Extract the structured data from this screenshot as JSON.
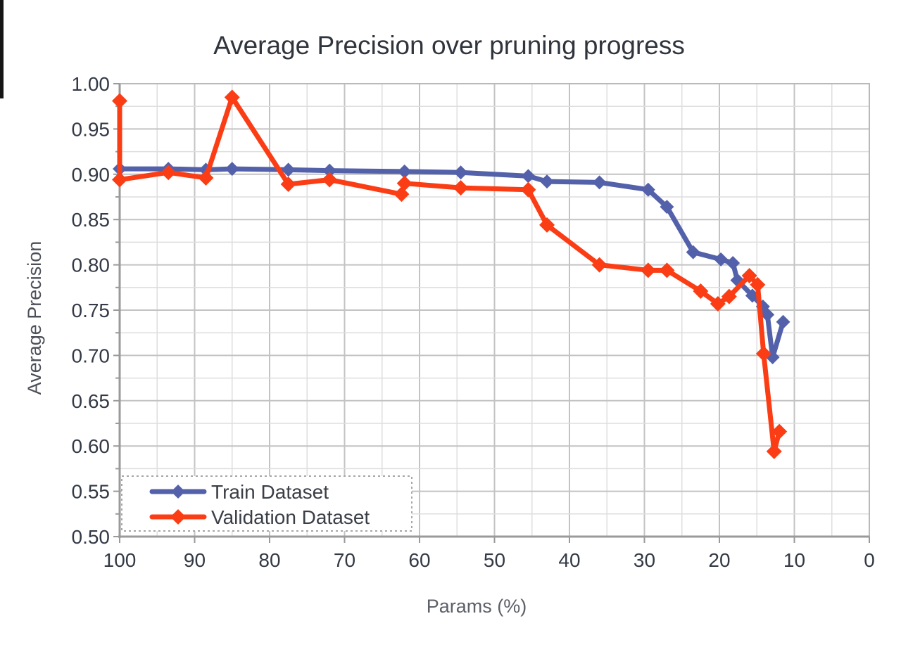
{
  "chart_data": {
    "type": "line",
    "title": "Average Precision over pruning progress",
    "xlabel": "Params (%)",
    "ylabel": "Average Precision",
    "x_axis": {
      "min": 0,
      "max": 100,
      "reversed": true,
      "tick_step": 10,
      "minor_grid_step": 5,
      "tick_labels": [
        "100",
        "90",
        "80",
        "70",
        "60",
        "50",
        "40",
        "30",
        "20",
        "10",
        "0"
      ]
    },
    "y_axis": {
      "min": 0.5,
      "max": 1.0,
      "tick_step": 0.05,
      "minor_grid_step": 0.025,
      "tick_decimals": 2,
      "tick_labels": [
        "1.00",
        "0.95",
        "0.90",
        "0.85",
        "0.80",
        "0.75",
        "0.70",
        "0.65",
        "0.60",
        "0.55",
        "0.50"
      ]
    },
    "grid": true,
    "legend": {
      "position": "bottom-left",
      "style": "dashed-box"
    },
    "text_color": "#333945",
    "series": [
      {
        "name": "Train Dataset",
        "color": "#5361ab",
        "marker": "diamond",
        "marker_size": 10,
        "line_width": 7,
        "points": [
          [
            100,
            0.906
          ],
          [
            93.5,
            0.906
          ],
          [
            88.5,
            0.905
          ],
          [
            85,
            0.906
          ],
          [
            77.5,
            0.905
          ],
          [
            72,
            0.904
          ],
          [
            62,
            0.903
          ],
          [
            54.5,
            0.902
          ],
          [
            45.5,
            0.898
          ],
          [
            43,
            0.892
          ],
          [
            36,
            0.891
          ],
          [
            29.5,
            0.883
          ],
          [
            27,
            0.864
          ],
          [
            23.5,
            0.814
          ],
          [
            19.8,
            0.806
          ],
          [
            18.2,
            0.802
          ],
          [
            17.6,
            0.783
          ],
          [
            15.6,
            0.766
          ],
          [
            14.2,
            0.754
          ],
          [
            13.6,
            0.745
          ],
          [
            12.9,
            0.698
          ],
          [
            11.5,
            0.737
          ]
        ]
      },
      {
        "name": "Validation Dataset",
        "color": "#fb3d15",
        "marker": "diamond",
        "marker_size": 11,
        "line_width": 7,
        "points": [
          [
            100,
            0.981
          ],
          [
            100,
            0.894
          ],
          [
            93.5,
            0.902
          ],
          [
            88.5,
            0.896
          ],
          [
            85,
            0.985
          ],
          [
            77.5,
            0.889
          ],
          [
            72,
            0.894
          ],
          [
            62.4,
            0.878
          ],
          [
            62,
            0.89
          ],
          [
            54.5,
            0.885
          ],
          [
            45.5,
            0.883
          ],
          [
            43,
            0.844
          ],
          [
            36,
            0.8
          ],
          [
            29.5,
            0.794
          ],
          [
            27,
            0.794
          ],
          [
            22.5,
            0.771
          ],
          [
            20.2,
            0.757
          ],
          [
            18.7,
            0.765
          ],
          [
            16,
            0.788
          ],
          [
            14.9,
            0.778
          ],
          [
            14.1,
            0.702
          ],
          [
            12.7,
            0.594
          ],
          [
            12.0,
            0.616
          ]
        ]
      }
    ]
  }
}
